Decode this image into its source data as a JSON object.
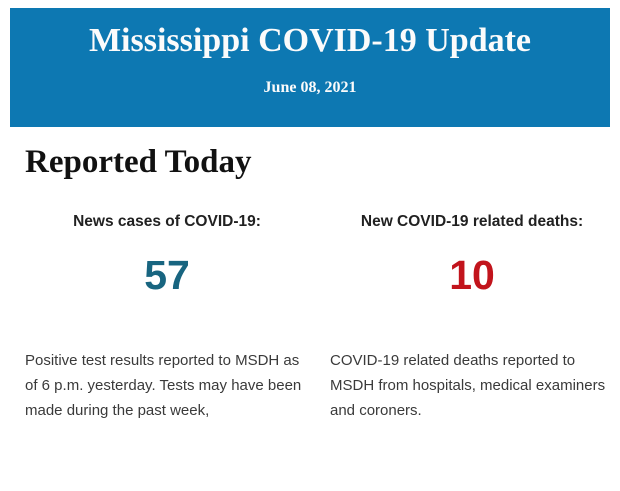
{
  "colors": {
    "banner_bg": "#0d78b2",
    "banner_text": "#fbfbfb",
    "heading_text": "#111111",
    "label_text": "#212121",
    "cases_value": "#186580",
    "deaths_value": "#c2141c",
    "body_text": "#3a3a3a"
  },
  "banner": {
    "title": "Mississippi COVID-19 Update",
    "date": "June 08, 2021"
  },
  "section": {
    "heading": "Reported Today"
  },
  "stats": [
    {
      "label": "News cases of COVID-19:",
      "value": "57",
      "description": "Positive test results reported to MSDH as of 6 p.m. yesterday. Tests may have been made during the past week,"
    },
    {
      "label": "New COVID-19 related deaths:",
      "value": "10",
      "description": "COVID-19 related deaths reported to MSDH from hospitals, medical examiners and coroners."
    }
  ]
}
